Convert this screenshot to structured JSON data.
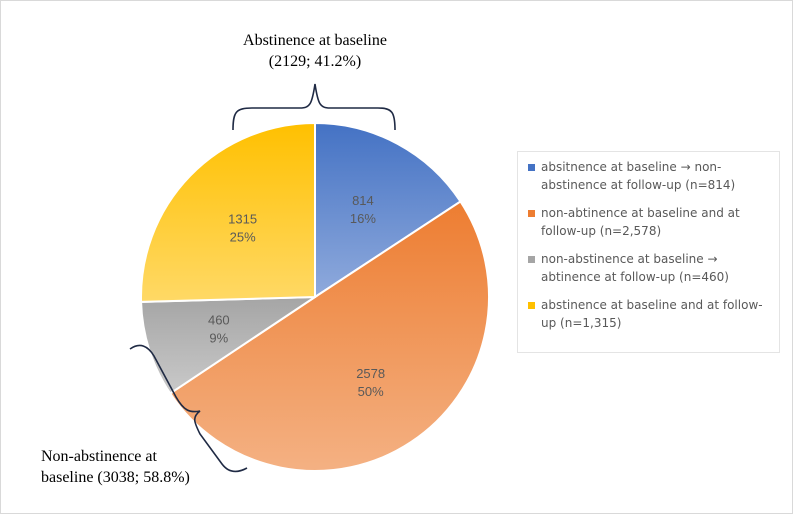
{
  "chart_data": {
    "type": "pie",
    "categories": [
      "absitnence at baseline → non-abstinence at follow-up (n=814)",
      "non-abtinence at baseline and at follow-up (n=2,578)",
      "non-abstinence at baseline → abtinence at follow-up (n=460)",
      "abstinence at baseline and at follow-up (n=1,315)"
    ],
    "values": [
      814,
      2578,
      460,
      1315
    ],
    "percent_labels": [
      "16%",
      "50%",
      "9%",
      "25%"
    ],
    "colors": [
      "#4472c4",
      "#ed7d31",
      "#a5a5a5",
      "#ffc000"
    ],
    "colors_light": [
      "#8faadc",
      "#f4b183",
      "#c9c9c9",
      "#ffd966"
    ],
    "legend_position": "right",
    "annotations": {
      "top": {
        "line1": "Abstinence at baseline",
        "line2": "(2129; 41.2%)"
      },
      "bottom": {
        "line1": "Non-abstinence at",
        "line2": "baseline (3038; 58.8%)"
      }
    }
  }
}
